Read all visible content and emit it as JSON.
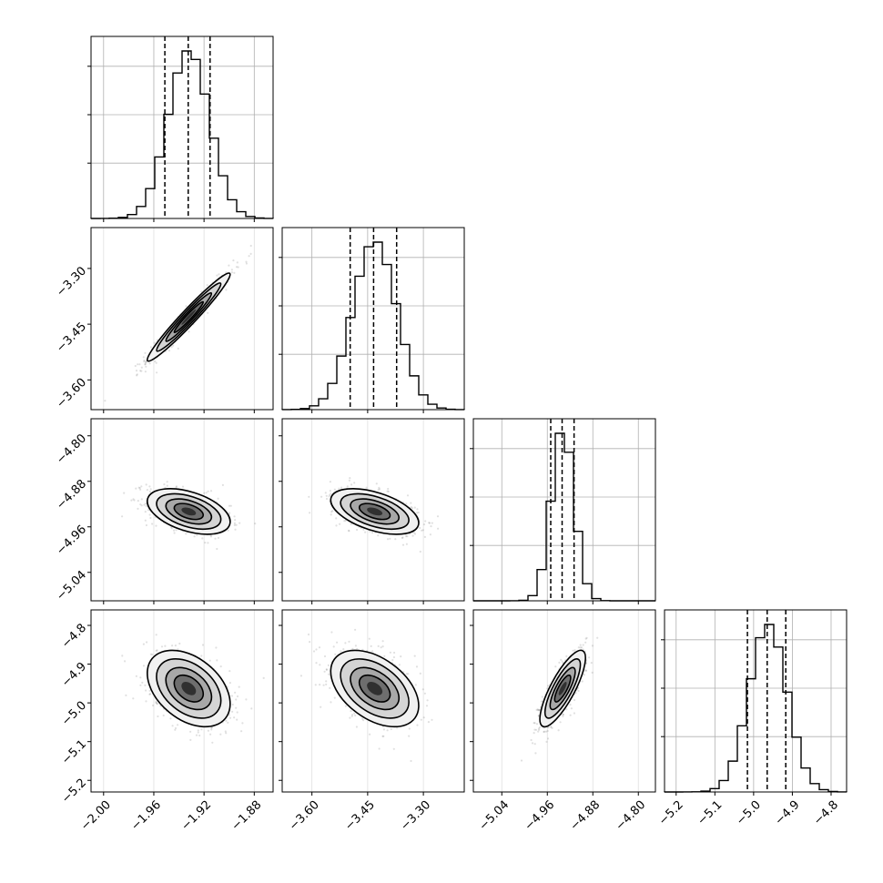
{
  "chart_data": {
    "type": "corner",
    "n_params": 4,
    "grid": true,
    "parameters": [
      {
        "ticks": [
          -2.0,
          -1.96,
          -1.92,
          -1.88
        ],
        "tick_labels": [
          "−2.00",
          "−1.96",
          "−1.92",
          "−1.88"
        ],
        "range": [
          -2.01,
          -1.865
        ]
      },
      {
        "ticks": [
          -3.6,
          -3.45,
          -3.3
        ],
        "tick_labels": [
          "−3.60",
          "−3.45",
          "−3.30"
        ],
        "range": [
          -3.68,
          -3.19
        ]
      },
      {
        "ticks": [
          -5.04,
          -4.96,
          -4.88,
          -4.8
        ],
        "tick_labels": [
          "−5.04",
          "−4.96",
          "−4.88",
          "−4.80"
        ],
        "range": [
          -5.09,
          -4.77
        ]
      },
      {
        "ticks": [
          -5.2,
          -5.1,
          -5.0,
          -4.9,
          -4.8
        ],
        "tick_labels": [
          "−5.2",
          "−5.1",
          "−5.0",
          "−4.9",
          "−4.8"
        ],
        "range": [
          -5.23,
          -4.76
        ]
      }
    ],
    "marginals": [
      {
        "param": 0,
        "mean": -1.9322,
        "sd": 0.0165,
        "quantiles": [
          -1.9512,
          -1.9326,
          -1.9152
        ]
      },
      {
        "param": 1,
        "mean": -3.431,
        "sd": 0.0592,
        "quantiles": [
          -3.497,
          -3.434,
          -3.372
        ]
      },
      {
        "param": 2,
        "mean": -4.933,
        "sd": 0.02,
        "quantiles": [
          -4.954,
          -4.934,
          -4.913
        ]
      },
      {
        "param": 3,
        "mean": -4.963,
        "sd": 0.0493,
        "quantiles": [
          -5.016,
          -4.965,
          -4.917
        ]
      }
    ],
    "pairs": [
      {
        "row": 1,
        "col": 0,
        "corr": 0.97
      },
      {
        "row": 2,
        "col": 0,
        "corr": -0.45
      },
      {
        "row": 2,
        "col": 1,
        "corr": -0.5
      },
      {
        "row": 3,
        "col": 0,
        "corr": -0.4
      },
      {
        "row": 3,
        "col": 1,
        "corr": -0.45
      },
      {
        "row": 3,
        "col": 2,
        "corr": 0.8
      }
    ]
  }
}
